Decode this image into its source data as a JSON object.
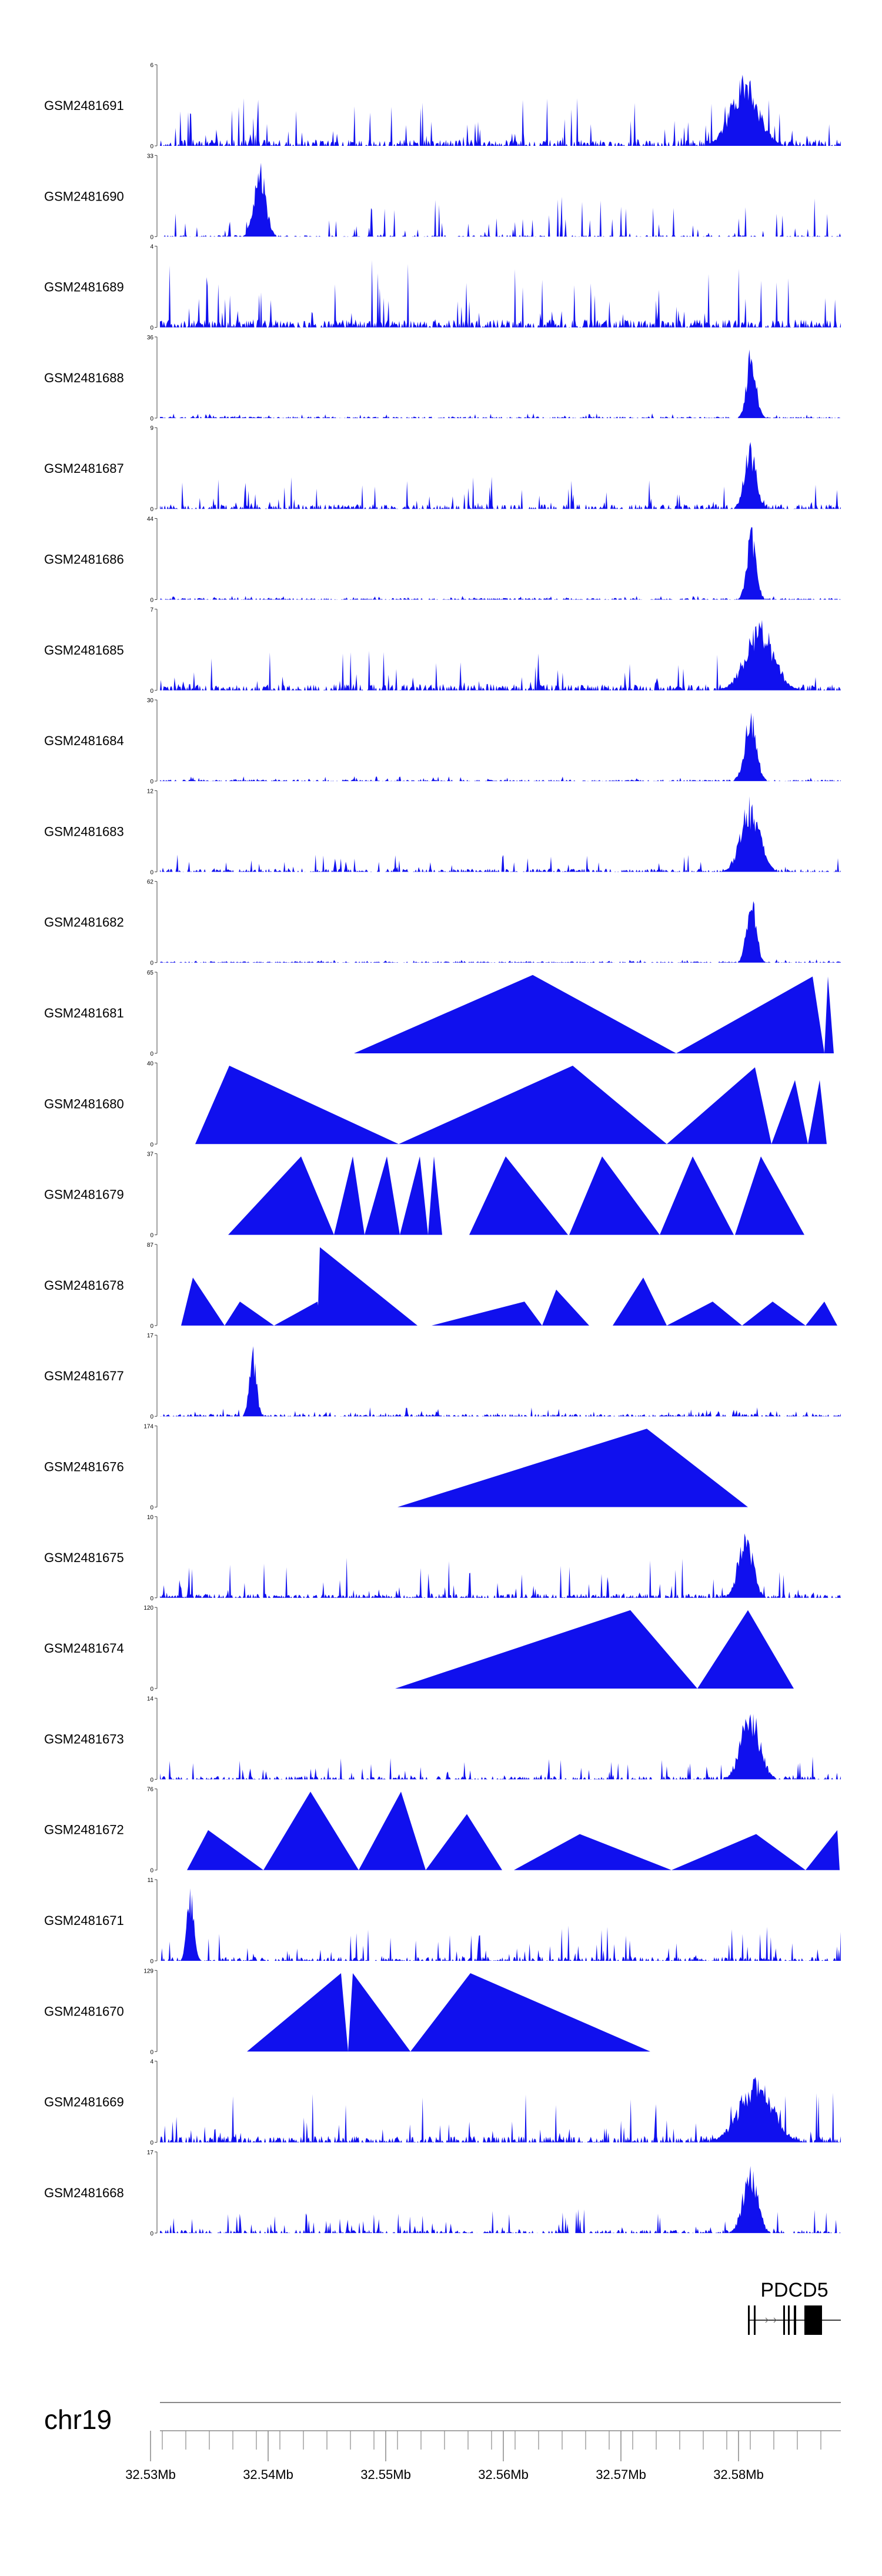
{
  "chart_data": {
    "type": "area",
    "chromosome": "chr19",
    "x_unit": "Mb",
    "xlim": [
      32.5308,
      32.5887
    ],
    "axis_ticks": [
      "32.53Mb",
      "32.54Mb",
      "32.55Mb",
      "32.56Mb",
      "32.57Mb",
      "32.58Mb"
    ],
    "axis_tick_values": [
      32.53,
      32.54,
      32.55,
      32.56,
      32.57,
      32.58
    ],
    "gene": {
      "name": "PDCD5",
      "start": 32.5808,
      "end": 32.5887,
      "exons": [
        [
          32.5808,
          32.5809
        ],
        [
          32.5813,
          32.5814
        ],
        [
          32.5838,
          32.5839
        ],
        [
          32.5842,
          32.5843
        ],
        [
          32.5847,
          32.5849
        ],
        [
          32.5856,
          32.5871
        ]
      ]
    },
    "tracks": [
      {
        "name": "GSM2481691",
        "ymax": "6",
        "ymin": "0",
        "style": "noisy",
        "seed": 1,
        "base": 0.08,
        "spike": 0.6,
        "density": 0.55,
        "peak": [
          {
            "x": 32.5805,
            "h": 0.9,
            "w": 0.0012
          }
        ]
      },
      {
        "name": "GSM2481690",
        "ymax": "33",
        "ymin": "0",
        "style": "noisy",
        "seed": 2,
        "base": 0.02,
        "spike": 0.5,
        "density": 0.3,
        "peak": [
          {
            "x": 32.5393,
            "h": 0.95,
            "w": 0.0005
          }
        ]
      },
      {
        "name": "GSM2481689",
        "ymax": "4",
        "ymin": "0",
        "style": "noisy",
        "seed": 3,
        "base": 0.1,
        "spike": 0.85,
        "density": 0.6,
        "peak": []
      },
      {
        "name": "GSM2481688",
        "ymax": "36",
        "ymin": "0",
        "style": "flat",
        "seed": 4,
        "base": 0.02,
        "spike": 0.06,
        "density": 0.5,
        "peak": [
          {
            "x": 32.5811,
            "h": 0.95,
            "w": 0.0004
          }
        ]
      },
      {
        "name": "GSM2481687",
        "ymax": "9",
        "ymin": "0",
        "style": "noisy",
        "seed": 5,
        "base": 0.06,
        "spike": 0.4,
        "density": 0.5,
        "peak": [
          {
            "x": 32.581,
            "h": 0.85,
            "w": 0.0005
          }
        ]
      },
      {
        "name": "GSM2481686",
        "ymax": "44",
        "ymin": "0",
        "style": "flat",
        "seed": 6,
        "base": 0.02,
        "spike": 0.05,
        "density": 0.5,
        "peak": [
          {
            "x": 32.5811,
            "h": 0.95,
            "w": 0.0004
          }
        ]
      },
      {
        "name": "GSM2481685",
        "ymax": "7",
        "ymin": "0",
        "style": "noisy",
        "seed": 7,
        "base": 0.08,
        "spike": 0.5,
        "density": 0.55,
        "peak": [
          {
            "x": 32.5818,
            "h": 0.9,
            "w": 0.0012
          }
        ]
      },
      {
        "name": "GSM2481684",
        "ymax": "30",
        "ymin": "0",
        "style": "flat",
        "seed": 8,
        "base": 0.02,
        "spike": 0.06,
        "density": 0.5,
        "peak": [
          {
            "x": 32.581,
            "h": 0.95,
            "w": 0.0005
          }
        ]
      },
      {
        "name": "GSM2481683",
        "ymax": "12",
        "ymin": "0",
        "style": "noisy",
        "seed": 9,
        "base": 0.04,
        "spike": 0.22,
        "density": 0.5,
        "peak": [
          {
            "x": 32.581,
            "h": 0.95,
            "w": 0.0008
          }
        ]
      },
      {
        "name": "GSM2481682",
        "ymax": "62",
        "ymin": "0",
        "style": "flat",
        "seed": 10,
        "base": 0.015,
        "spike": 0.04,
        "density": 0.5,
        "peak": [
          {
            "x": 32.5811,
            "h": 0.95,
            "w": 0.0004
          }
        ]
      },
      {
        "name": "GSM2481681",
        "ymax": "65",
        "ymin": "0",
        "style": "tri",
        "tris": [
          [
            32.5473,
            32.5625,
            32.5747,
            0.98
          ],
          [
            32.5747,
            32.5863,
            32.5873,
            0.96
          ],
          [
            32.5873,
            32.5876,
            32.5881,
            0.96
          ]
        ]
      },
      {
        "name": "GSM2481680",
        "ymax": "40",
        "ymin": "0",
        "style": "tri",
        "tris": [
          [
            32.5338,
            32.5367,
            32.5511,
            0.98
          ],
          [
            32.5511,
            32.5659,
            32.5739,
            0.98
          ],
          [
            32.5739,
            32.5814,
            32.5828,
            0.96
          ],
          [
            32.5828,
            32.5848,
            32.5859,
            0.8
          ],
          [
            32.5859,
            32.5869,
            32.5875,
            0.8
          ]
        ]
      },
      {
        "name": "GSM2481679",
        "ymax": "37",
        "ymin": "0",
        "style": "tri",
        "tris": [
          [
            32.5366,
            32.5428,
            32.5456,
            0.98
          ],
          [
            32.5456,
            32.5472,
            32.5482,
            0.98
          ],
          [
            32.5482,
            32.5501,
            32.5512,
            0.98
          ],
          [
            32.5512,
            32.5529,
            32.5536,
            0.98
          ],
          [
            32.5536,
            32.5541,
            32.5548,
            0.98
          ],
          [
            32.5571,
            32.5602,
            32.5655,
            0.98
          ],
          [
            32.5656,
            32.5684,
            32.5733,
            0.98
          ],
          [
            32.5733,
            32.5761,
            32.5796,
            0.98
          ],
          [
            32.5797,
            32.5819,
            32.5856,
            0.98
          ]
        ]
      },
      {
        "name": "GSM2481678",
        "ymax": "87",
        "ymin": "0",
        "style": "tri",
        "tris": [
          [
            32.5326,
            32.5336,
            32.5363,
            0.6
          ],
          [
            32.5363,
            32.5376,
            32.5405,
            0.3
          ],
          [
            32.5405,
            32.5442,
            32.5445,
            0.3
          ],
          [
            32.5442,
            32.5444,
            32.5527,
            0.98
          ],
          [
            32.5539,
            32.5618,
            32.5633,
            0.3
          ],
          [
            32.5633,
            32.5645,
            32.5673,
            0.45
          ],
          [
            32.5693,
            32.5719,
            32.5739,
            0.6
          ],
          [
            32.5739,
            32.5778,
            32.5803,
            0.3
          ],
          [
            32.5803,
            32.5829,
            32.5857,
            0.3
          ],
          [
            32.5857,
            32.5873,
            32.5884,
            0.3
          ]
        ]
      },
      {
        "name": "GSM2481677",
        "ymax": "17",
        "ymin": "0",
        "style": "flat",
        "seed": 11,
        "base": 0.03,
        "spike": 0.12,
        "density": 0.55,
        "peak": [
          {
            "x": 32.5387,
            "h": 0.92,
            "w": 0.0003
          }
        ]
      },
      {
        "name": "GSM2481676",
        "ymax": "174",
        "ymin": "0",
        "style": "tri",
        "tris": [
          [
            32.551,
            32.5722,
            32.5808,
            0.98
          ]
        ]
      },
      {
        "name": "GSM2481675",
        "ymax": "10",
        "ymin": "0",
        "style": "noisy",
        "seed": 12,
        "base": 0.05,
        "spike": 0.5,
        "density": 0.55,
        "peak": [
          {
            "x": 32.5806,
            "h": 0.95,
            "w": 0.0006
          }
        ]
      },
      {
        "name": "GSM2481674",
        "ymax": "120",
        "ymin": "0",
        "style": "tri",
        "tris": [
          [
            32.5508,
            32.5708,
            32.5765,
            0.98
          ],
          [
            32.5765,
            32.5808,
            32.5847,
            0.98
          ]
        ]
      },
      {
        "name": "GSM2481673",
        "ymax": "14",
        "ymin": "0",
        "style": "noisy",
        "seed": 13,
        "base": 0.04,
        "spike": 0.3,
        "density": 0.4,
        "peak": [
          {
            "x": 32.581,
            "h": 0.95,
            "w": 0.0008
          }
        ]
      },
      {
        "name": "GSM2481672",
        "ymax": "76",
        "ymin": "0",
        "style": "tri",
        "tris": [
          [
            32.5331,
            32.5349,
            32.5396,
            0.5
          ],
          [
            32.5396,
            32.5436,
            32.5477,
            0.98
          ],
          [
            32.5477,
            32.5513,
            32.5534,
            0.98
          ],
          [
            32.5534,
            32.5569,
            32.5599,
            0.7
          ],
          [
            32.5609,
            32.5665,
            32.5743,
            0.45
          ],
          [
            32.5743,
            32.5815,
            32.5857,
            0.45
          ],
          [
            32.5857,
            32.5884,
            32.5886,
            0.5
          ]
        ]
      },
      {
        "name": "GSM2481671",
        "ymax": "11",
        "ymin": "0",
        "style": "noisy",
        "seed": 14,
        "base": 0.05,
        "spike": 0.45,
        "density": 0.45,
        "peak": [
          {
            "x": 32.5334,
            "h": 0.95,
            "w": 0.0003
          }
        ]
      },
      {
        "name": "GSM2481670",
        "ymax": "129",
        "ymin": "0",
        "style": "tri",
        "tris": [
          [
            32.5382,
            32.5462,
            32.5468,
            0.98
          ],
          [
            32.5468,
            32.5472,
            32.5521,
            0.98
          ],
          [
            32.5521,
            32.5572,
            32.5725,
            0.98
          ]
        ]
      },
      {
        "name": "GSM2481669",
        "ymax": "4",
        "ymin": "0",
        "style": "noisy",
        "seed": 15,
        "base": 0.08,
        "spike": 0.65,
        "density": 0.6,
        "peak": [
          {
            "x": 32.5815,
            "h": 0.9,
            "w": 0.0014
          }
        ]
      },
      {
        "name": "GSM2481668",
        "ymax": "17",
        "ymin": "0",
        "style": "noisy",
        "seed": 16,
        "base": 0.04,
        "spike": 0.3,
        "density": 0.45,
        "peak": [
          {
            "x": 32.581,
            "h": 0.95,
            "w": 0.0006
          }
        ]
      }
    ]
  }
}
